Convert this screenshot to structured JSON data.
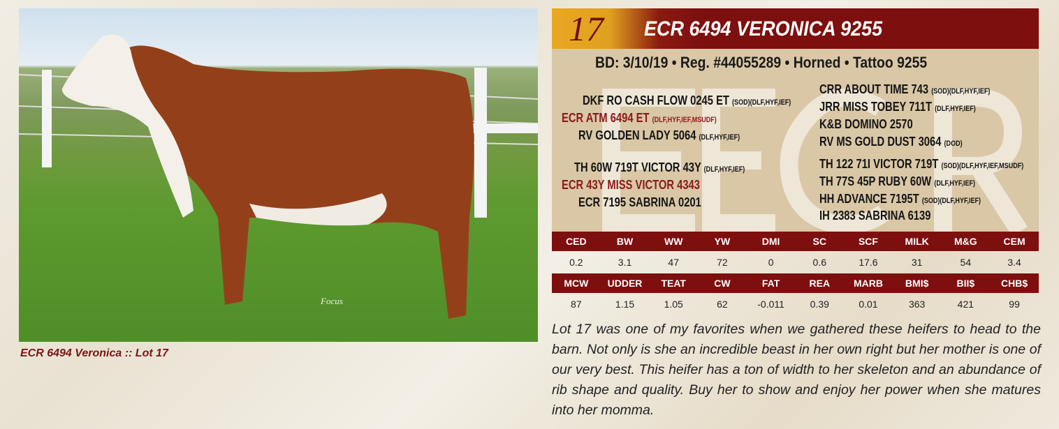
{
  "photo": {
    "caption": "ECR 6494 Veronica :: Lot 17",
    "watermark": "Focus"
  },
  "header": {
    "lot": "17",
    "name": "ECR 6494 VERONICA 9255",
    "details": "BD: 3/10/19 • Reg. #44055289 • Horned • Tattoo 9255",
    "watermark": "ECR"
  },
  "pedigree": {
    "left": [
      {
        "name": "DKF RO CASH FLOW 0245 ET",
        "tags": "(SOD)(DLF,HYF,IEF)"
      },
      {
        "name": "ECR ATM 6494 ET",
        "tags": "(DLF,HYF,IEF,MSUDF)"
      },
      {
        "name": "RV GOLDEN LADY 5064",
        "tags": "(DLF,HYF,IEF)"
      },
      {
        "name": "TH 60W 719T VICTOR 43Y",
        "tags": "(DLF,HYF,IEF)"
      },
      {
        "name": "ECR 43Y MISS VICTOR 4343",
        "tags": ""
      },
      {
        "name": "ECR 7195 SABRINA 0201",
        "tags": ""
      }
    ],
    "right": [
      {
        "name": "CRR ABOUT TIME 743",
        "tags": "(SOD)(DLF,HYF,IEF)"
      },
      {
        "name": "JRR MISS TOBEY 711T",
        "tags": "(DLF,HYF,IEF)"
      },
      {
        "name": "K&B DOMINO 2570",
        "tags": ""
      },
      {
        "name": "RV MS GOLD DUST 3064",
        "tags": "(DOD)"
      },
      {
        "name": "TH 122 71I VICTOR 719T",
        "tags": "(SOD)(DLF,HYF,IEF,MSUDF)"
      },
      {
        "name": "TH 77S 45P RUBY 60W",
        "tags": "(DLF,HYF,IEF)"
      },
      {
        "name": "HH ADVANCE 7195T",
        "tags": "(SOD)(DLF,HYF,IEF)"
      },
      {
        "name": "IH 2383 SABRINA 6139",
        "tags": ""
      }
    ]
  },
  "epds": {
    "headers1": [
      "CED",
      "BW",
      "WW",
      "YW",
      "DMI",
      "SC",
      "SCF",
      "MILK",
      "M&G",
      "CEM"
    ],
    "values1": [
      "0.2",
      "3.1",
      "47",
      "72",
      "0",
      "0.6",
      "17.6",
      "31",
      "54",
      "3.4"
    ],
    "headers2": [
      "MCW",
      "UDDER",
      "TEAT",
      "CW",
      "FAT",
      "REA",
      "MARB",
      "BMI$",
      "BII$",
      "CHB$"
    ],
    "values2": [
      "87",
      "1.15",
      "1.05",
      "62",
      "-0.011",
      "0.39",
      "0.01",
      "363",
      "421",
      "99"
    ]
  },
  "description": "Lot 17 was one of my favorites when we gathered these heifers to head to the barn. Not only is she an incredible beast in her own right but her mother is one of our very best. This heifer has a ton of width to her skeleton and an abundance of rib shape and quality. Buy her to show and enjoy her power when she matures into her momma.",
  "colors": {
    "maroon": "#7d0f0f",
    "gold": "#e9a722",
    "tan": "#d9c7a6"
  }
}
